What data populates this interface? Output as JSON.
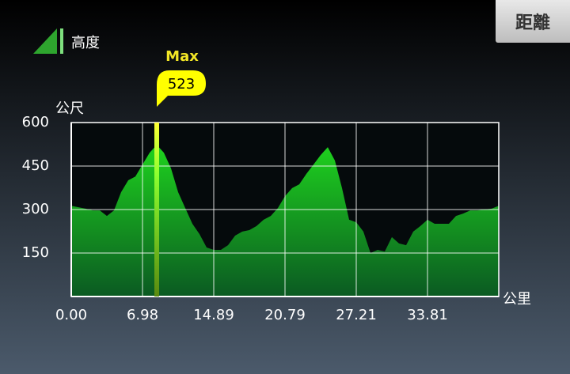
{
  "header": {
    "title": "高度",
    "button": "距離"
  },
  "chart_data": {
    "type": "area",
    "y_label": "公尺",
    "x_label": "公里",
    "x_tick_labels": [
      "0.00",
      "6.98",
      "14.89",
      "20.79",
      "27.21",
      "33.81"
    ],
    "values": [
      313,
      308,
      303,
      297,
      297,
      278,
      297,
      360,
      401,
      414,
      455,
      496,
      523,
      496,
      442,
      360,
      305,
      251,
      215,
      169,
      161,
      161,
      177,
      210,
      224,
      229,
      243,
      265,
      278,
      305,
      346,
      374,
      387,
      423,
      455,
      488,
      515,
      469,
      374,
      265,
      256,
      224,
      150,
      161,
      155,
      205,
      183,
      177,
      224,
      243,
      265,
      251,
      251,
      251,
      278,
      286,
      297,
      297,
      300,
      303,
      313
    ],
    "max_label": "Max",
    "ylim": [
      0,
      600
    ],
    "yticks": [
      150,
      300,
      450,
      600
    ],
    "grid": true,
    "color": "#12b51f"
  }
}
